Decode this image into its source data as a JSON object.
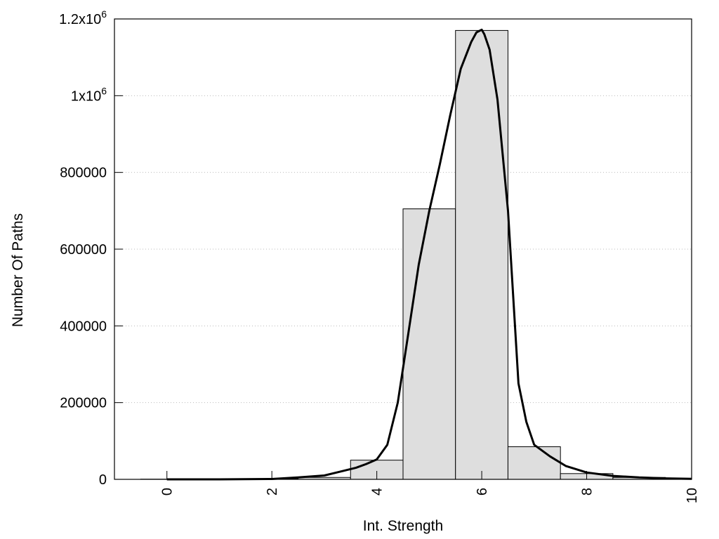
{
  "chart_data": {
    "type": "bar",
    "xlabel": "Int. Strength",
    "ylabel": "Number Of Paths",
    "xlim": [
      -1,
      10
    ],
    "ylim": [
      0,
      1200000
    ],
    "grid": {
      "horizontal": true,
      "vertical": false
    },
    "x_ticks": [
      {
        "value": 0,
        "label": "0"
      },
      {
        "value": 2,
        "label": "2"
      },
      {
        "value": 4,
        "label": "4"
      },
      {
        "value": 6,
        "label": "6"
      },
      {
        "value": 8,
        "label": "8"
      },
      {
        "value": 10,
        "label": "10"
      }
    ],
    "y_ticks": [
      {
        "value": 0,
        "label": "0"
      },
      {
        "value": 200000,
        "label": "200000"
      },
      {
        "value": 400000,
        "label": "400000"
      },
      {
        "value": 600000,
        "label": "600000"
      },
      {
        "value": 800000,
        "label": "800000"
      },
      {
        "value": 1000000,
        "label": "1x10",
        "sup": "6"
      },
      {
        "value": 1200000,
        "label": "1.2x10",
        "sup": "6"
      }
    ],
    "bar_width": 1,
    "bars": [
      {
        "x": 0,
        "value": 500
      },
      {
        "x": 1,
        "value": 800
      },
      {
        "x": 2,
        "value": 1500
      },
      {
        "x": 3,
        "value": 5000
      },
      {
        "x": 4,
        "value": 50000
      },
      {
        "x": 5,
        "value": 705000
      },
      {
        "x": 6,
        "value": 1170000
      },
      {
        "x": 7,
        "value": 85000
      },
      {
        "x": 8,
        "value": 15000
      },
      {
        "x": 9,
        "value": 5000
      },
      {
        "x": 10,
        "value": 2000
      }
    ],
    "curve": {
      "x": [
        0,
        1,
        2,
        2.5,
        3,
        3.3,
        3.6,
        3.8,
        4,
        4.2,
        4.4,
        4.6,
        4.8,
        5,
        5.2,
        5.4,
        5.6,
        5.8,
        5.9,
        6,
        6.05,
        6.15,
        6.3,
        6.5,
        6.7,
        6.85,
        7,
        7.3,
        7.6,
        8,
        8.5,
        9,
        9.5,
        10
      ],
      "y": [
        0,
        0,
        1000,
        5000,
        10000,
        20000,
        30000,
        40000,
        52000,
        90000,
        200000,
        380000,
        560000,
        700000,
        820000,
        950000,
        1070000,
        1140000,
        1165000,
        1172000,
        1160000,
        1120000,
        990000,
        700000,
        250000,
        150000,
        90000,
        60000,
        35000,
        18000,
        9000,
        5000,
        2500,
        1500
      ]
    }
  }
}
